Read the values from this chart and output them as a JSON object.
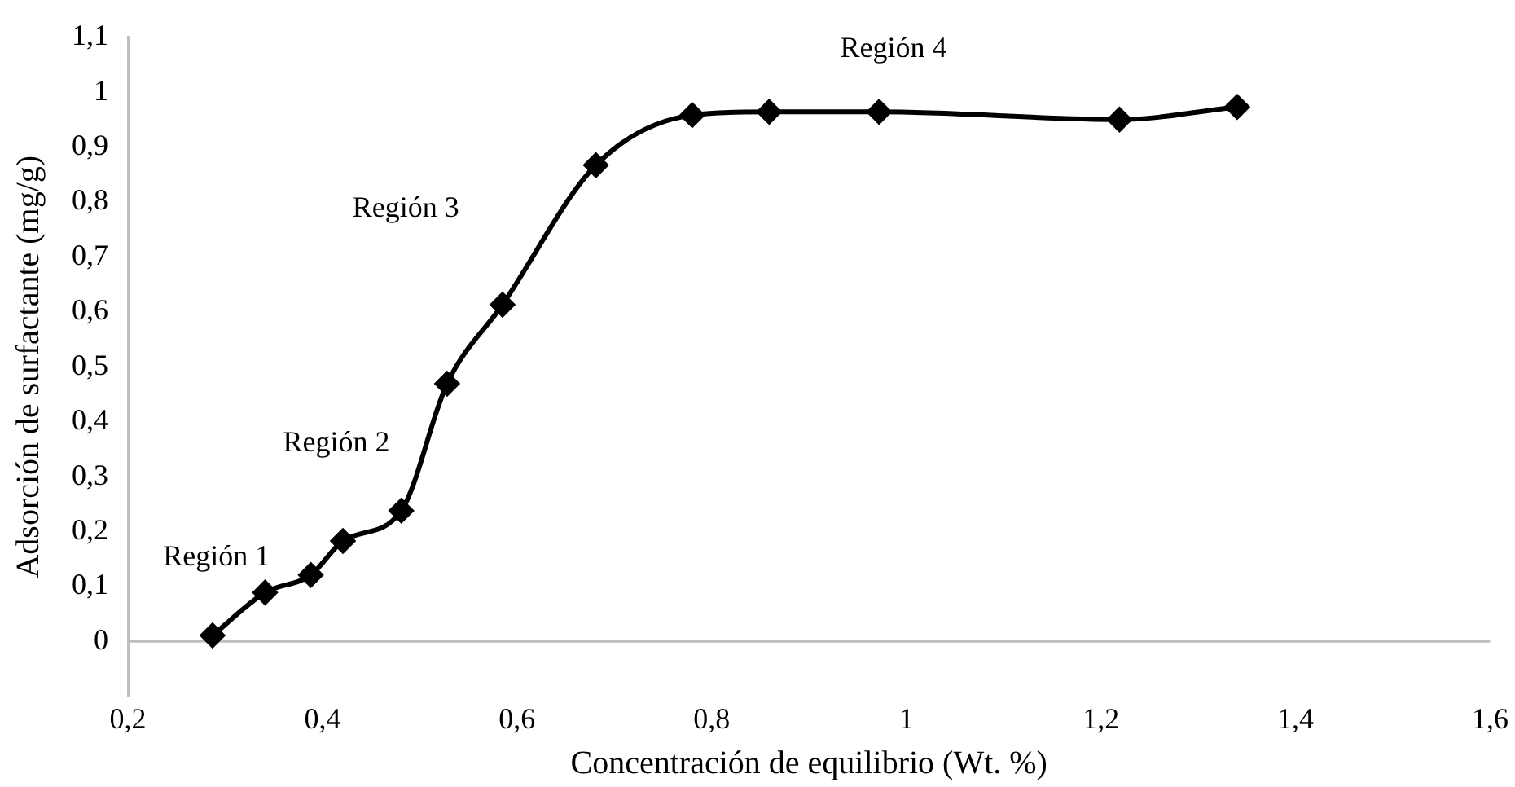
{
  "chart_data": {
    "type": "line",
    "xlabel": "Concentración de equilibrio (Wt. %)",
    "ylabel": "Adsorción de surfactante (mg/g)",
    "x": [
      0.287,
      0.341,
      0.388,
      0.421,
      0.481,
      0.528,
      0.585,
      0.681,
      0.78,
      0.859,
      0.972,
      1.219,
      1.34
    ],
    "series": [
      {
        "color": "#000000",
        "values": [
          0.011,
          0.089,
          0.121,
          0.183,
          0.238,
          0.469,
          0.613,
          0.867,
          0.958,
          0.964,
          0.964,
          0.95,
          0.973
        ]
      }
    ],
    "xlim": [
      0.2,
      1.6
    ],
    "xticks": [
      {
        "value": 0.2,
        "label": "0,2"
      },
      {
        "value": 0.4,
        "label": "0,4"
      },
      {
        "value": 0.6,
        "label": "0,6"
      },
      {
        "value": 0.8,
        "label": "0,8"
      },
      1,
      {
        "value": 1.2,
        "label": "1,2"
      },
      {
        "value": 1.4,
        "label": "1,4"
      },
      {
        "value": 1.6,
        "label": "1,6"
      }
    ],
    "ylim": [
      -0.1,
      1.1
    ],
    "yticks": [
      0,
      {
        "value": 0.1,
        "label": "0,1"
      },
      {
        "value": 0.2,
        "label": "0,2"
      },
      {
        "value": 0.3,
        "label": "0,3"
      },
      {
        "value": 0.4,
        "label": "0,4"
      },
      {
        "value": 0.5,
        "label": "0,5"
      },
      {
        "value": 0.6,
        "label": "0,6"
      },
      {
        "value": 0.7,
        "label": "0,7"
      },
      {
        "value": 0.8,
        "label": "0,8"
      },
      {
        "value": 0.9,
        "label": "0,9"
      },
      1,
      {
        "value": 1.1,
        "label": "1,1"
      }
    ],
    "grid": false,
    "legend": false,
    "marker": "diamond",
    "line_style": "solid",
    "annotations": [
      "Región 1",
      "Región 2",
      "Región 3",
      "Región 4"
    ]
  }
}
